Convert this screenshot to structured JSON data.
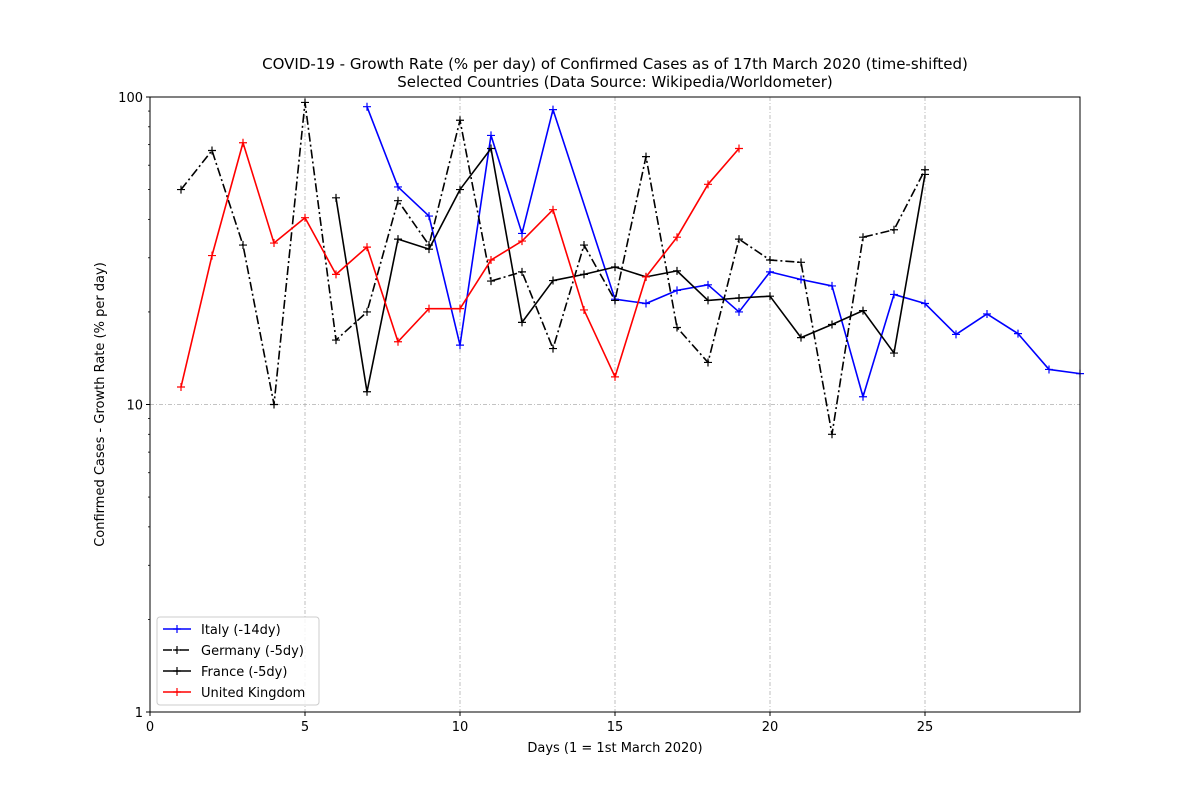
{
  "chart_data": {
    "type": "line",
    "title": "COVID-19 - Growth Rate (% per day) of Confirmed Cases as of 17th March 2020 (time-shifted)",
    "subtitle": "Selected Countries (Data Source: Wikipedia/Worldometer)",
    "xlabel": "Days (1 = 1st March 2020)",
    "ylabel": "Confirmed Cases - Growth Rate (% per day)",
    "xlim": [
      0,
      30
    ],
    "ylim": [
      1,
      100
    ],
    "yscale": "log",
    "grid": "dash-dot gridlines at x = 5, 10, 15, 20, 25 and y = 10",
    "x_ticks": [
      {
        "value": 0,
        "label": "0"
      },
      {
        "value": 5,
        "label": "5"
      },
      {
        "value": 10,
        "label": "10"
      },
      {
        "value": 15,
        "label": "15"
      },
      {
        "value": 20,
        "label": "20"
      },
      {
        "value": 25,
        "label": "25"
      }
    ],
    "y_ticks": [
      {
        "value": 1,
        "label": "1"
      },
      {
        "value": 10,
        "label": "10"
      },
      {
        "value": 100,
        "label": "100"
      }
    ],
    "legend": {
      "placement": "lower-left"
    },
    "series": [
      {
        "name": "Italy (-14dy)",
        "color": "#0000ff",
        "linestyle": "solid",
        "marker": "plus",
        "points": [
          [
            7,
            93
          ],
          [
            8,
            51
          ],
          [
            9,
            41
          ],
          [
            10,
            15.6
          ],
          [
            11,
            75
          ],
          [
            12,
            36
          ],
          [
            13,
            91
          ],
          [
            15,
            22
          ],
          [
            16,
            21.3
          ],
          [
            17,
            23.5
          ],
          [
            18,
            24.5
          ],
          [
            19,
            20
          ],
          [
            20,
            27
          ],
          [
            21,
            25.5
          ],
          [
            22,
            24.3
          ],
          [
            23,
            10.6
          ],
          [
            24,
            22.8
          ],
          [
            25,
            21.3
          ],
          [
            26,
            16.9
          ],
          [
            27,
            19.7
          ],
          [
            28,
            17
          ],
          [
            29,
            13
          ],
          [
            30,
            12.6
          ]
        ]
      },
      {
        "name": "Germany (-5dy)",
        "color": "#000000",
        "linestyle": "dashdot",
        "marker": "plus",
        "points": [
          [
            1,
            50
          ],
          [
            2,
            67
          ],
          [
            3,
            33
          ],
          [
            4,
            10
          ],
          [
            5,
            96
          ],
          [
            6,
            16.2
          ],
          [
            7,
            20
          ],
          [
            8,
            46
          ],
          [
            9,
            33
          ],
          [
            10,
            84
          ],
          [
            11,
            25.2
          ],
          [
            12,
            27
          ],
          [
            13,
            15.2
          ],
          [
            14,
            33
          ],
          [
            15,
            21.8
          ],
          [
            16,
            64
          ],
          [
            17,
            17.8
          ],
          [
            18,
            13.7
          ],
          [
            19,
            34.5
          ],
          [
            20,
            29.5
          ],
          [
            21,
            29
          ],
          [
            22,
            8
          ],
          [
            23,
            35
          ],
          [
            24,
            37
          ],
          [
            25,
            58
          ]
        ]
      },
      {
        "name": "France (-5dy)",
        "color": "#000000",
        "linestyle": "solid",
        "marker": "plus",
        "points": [
          [
            6,
            47
          ],
          [
            7,
            11
          ],
          [
            8,
            34.5
          ],
          [
            9,
            32
          ],
          [
            10,
            50
          ],
          [
            11,
            68
          ],
          [
            12,
            18.5
          ],
          [
            13,
            25.3
          ],
          [
            14,
            26.5
          ],
          [
            15,
            28
          ],
          [
            16,
            26
          ],
          [
            17,
            27.2
          ],
          [
            18,
            21.8
          ],
          [
            19,
            22.2
          ],
          [
            20,
            22.5
          ],
          [
            21,
            16.5
          ],
          [
            22,
            18.2
          ],
          [
            23,
            20.2
          ],
          [
            24,
            14.7
          ],
          [
            25,
            56
          ]
        ]
      },
      {
        "name": "United Kingdom",
        "color": "#ff0000",
        "linestyle": "solid",
        "marker": "plus",
        "points": [
          [
            1,
            11.4
          ],
          [
            2,
            30.5
          ],
          [
            3,
            71
          ],
          [
            4,
            33.5
          ],
          [
            5,
            40.5
          ],
          [
            6,
            26.5
          ],
          [
            7,
            32.5
          ],
          [
            8,
            16
          ],
          [
            9,
            20.5
          ],
          [
            10,
            20.5
          ],
          [
            11,
            29.5
          ],
          [
            12,
            34
          ],
          [
            13,
            43
          ],
          [
            14,
            20.3
          ],
          [
            15,
            12.3
          ],
          [
            16,
            26
          ],
          [
            17,
            35
          ],
          [
            18,
            52
          ],
          [
            19,
            68
          ]
        ]
      }
    ]
  }
}
